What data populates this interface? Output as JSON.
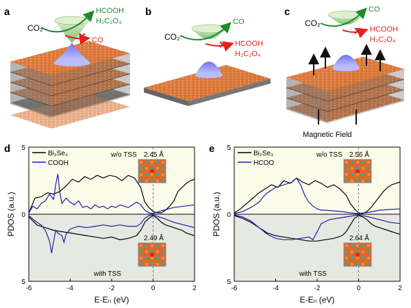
{
  "panels": {
    "a": {
      "letter": "a",
      "reactant": "CO₂",
      "favored": [
        "HCOOH",
        "H₂C₂O₄"
      ],
      "blocked": [
        "CO"
      ]
    },
    "b": {
      "letter": "b",
      "reactant": "CO₂",
      "favored": [
        "CO"
      ],
      "blocked": [
        "HCOOH",
        "H₂C₂O₄"
      ]
    },
    "c": {
      "letter": "c",
      "reactant": "CO₂",
      "favored": [
        "CO"
      ],
      "blocked": [
        "HCOOH",
        "H₂C₂O₄"
      ],
      "field_label": "Magnetic Field"
    }
  },
  "colors": {
    "favored": "#1e8a2e",
    "blocked": "#e3211c",
    "bi2se3": "#000000",
    "adsorbate": "#1a1ab4",
    "slab_top": "#e07a3a",
    "cone_upper": "#9bcf8a",
    "cone_lower": "#8a8ff0",
    "plot_top_bg": "#fbfbea",
    "plot_bottom_bg": "#e6e9e1"
  },
  "chart_data": [
    {
      "type": "line",
      "panel": "d",
      "xlabel": "E-Eₙ (eV)",
      "ylabel": "PDOS (a.u.)",
      "xlim": [
        -6,
        2
      ],
      "ylim": [
        -5,
        5
      ],
      "xticks": [
        "-6",
        "-4",
        "-2",
        "0",
        "2"
      ],
      "yticks": [
        "5",
        "0",
        "5"
      ],
      "top_label": "w/o TSS",
      "bottom_label": "with TSS",
      "legend": [
        "Bi₂Se₃",
        "COOH"
      ],
      "annotations": [
        "2.45 Å",
        "2.49 Å"
      ],
      "series": [
        {
          "name": "Bi₂Se₃",
          "part": "upper",
          "x": [
            -6,
            -5.7,
            -5.4,
            -5.1,
            -4.8,
            -4.5,
            -4.2,
            -3.9,
            -3.6,
            -3.3,
            -3.0,
            -2.7,
            -2.4,
            -2.1,
            -1.8,
            -1.5,
            -1.2,
            -0.9,
            -0.6,
            -0.4,
            -0.2,
            0,
            0.2,
            0.4,
            0.6,
            0.8,
            1.0,
            1.2,
            1.4,
            1.6,
            1.8,
            2.0
          ],
          "y": [
            0.1,
            1.2,
            1.3,
            1.6,
            1.5,
            1.7,
            2.1,
            2.6,
            2.4,
            2.8,
            2.6,
            2.9,
            2.7,
            2.9,
            2.8,
            2.5,
            2.9,
            2.7,
            2.0,
            0.9,
            0.5,
            0.2,
            0.1,
            0.1,
            0.3,
            0.6,
            1.0,
            1.7,
            2.0,
            2.3,
            2.5,
            2.6
          ]
        },
        {
          "name": "COOH",
          "part": "upper",
          "x": [
            -6,
            -5.8,
            -5.6,
            -5.4,
            -5.2,
            -5.0,
            -4.8,
            -4.7,
            -4.6,
            -4.5,
            -4.4,
            -4.2,
            -4.0,
            -3.8,
            -3.6,
            -3.4,
            -3.2,
            -3.0,
            -2.8,
            -2.6,
            -2.4,
            -2.2,
            -2.0,
            -1.8,
            -1.6,
            -1.4,
            -1.2,
            -1.0,
            -0.8,
            -0.6,
            -0.4,
            -0.2,
            0,
            0.5,
            1.0,
            1.5,
            2.0
          ],
          "y": [
            0.1,
            0.6,
            0.4,
            0.8,
            1.0,
            1.5,
            1.1,
            2.2,
            3.0,
            1.6,
            0.8,
            1.2,
            0.9,
            0.7,
            1.0,
            0.5,
            0.6,
            0.4,
            0.7,
            0.5,
            0.6,
            0.4,
            0.6,
            0.5,
            0.7,
            0.6,
            0.5,
            0.7,
            0.9,
            0.7,
            0.3,
            0.1,
            0.05,
            0.3,
            0.5,
            0.6,
            0.7
          ]
        },
        {
          "name": "Bi₂Se₃",
          "part": "lower",
          "x": [
            -6,
            -5.6,
            -5.2,
            -4.8,
            -4.4,
            -4.0,
            -3.6,
            -3.2,
            -2.8,
            -2.4,
            -2.0,
            -1.6,
            -1.2,
            -0.8,
            -0.6,
            -0.4,
            -0.2,
            0,
            0.2,
            0.4,
            0.6,
            0.8,
            1.0,
            1.2,
            1.4,
            1.6,
            1.8,
            2.0
          ],
          "y": [
            -0.2,
            -0.8,
            -1.0,
            -1.2,
            -1.3,
            -1.4,
            -1.5,
            -1.6,
            -1.7,
            -1.8,
            -1.7,
            -1.9,
            -1.8,
            -1.6,
            -1.2,
            -0.6,
            -0.3,
            -0.1,
            -0.3,
            -0.6,
            -0.8,
            -0.9,
            -1.0,
            -1.1,
            -1.2,
            -1.4,
            -1.5,
            -1.6
          ]
        },
        {
          "name": "COOH",
          "part": "lower",
          "x": [
            -6,
            -5.7,
            -5.4,
            -5.2,
            -5.0,
            -4.9,
            -4.8,
            -4.7,
            -4.6,
            -4.4,
            -4.3,
            -4.2,
            -4.0,
            -3.6,
            -3.2,
            -2.8,
            -2.4,
            -2.0,
            -1.6,
            -1.2,
            -0.8,
            -0.6,
            -0.4,
            -0.2,
            0,
            0.5,
            1.0,
            1.5,
            2.0
          ],
          "y": [
            -0.1,
            -0.5,
            -0.8,
            -1.2,
            -2.0,
            -2.9,
            -2.0,
            -1.2,
            -1.4,
            -1.6,
            -2.1,
            -1.5,
            -1.1,
            -0.9,
            -1.0,
            -0.9,
            -0.8,
            -0.9,
            -0.8,
            -0.9,
            -0.9,
            -0.7,
            -0.3,
            -0.1,
            -0.05,
            -0.3,
            -0.6,
            -0.8,
            -1.0
          ]
        }
      ]
    },
    {
      "type": "line",
      "panel": "e",
      "xlabel": "E-Eₙ (eV)",
      "ylabel": "PDOS (a.u.)",
      "xlim": [
        -6,
        2
      ],
      "ylim": [
        -5,
        5
      ],
      "xticks": [
        "-6",
        "-4",
        "-2",
        "0",
        "2"
      ],
      "yticks": [
        "5",
        "0",
        "5"
      ],
      "top_label": "w/o TSS",
      "bottom_label": "with TSS",
      "legend": [
        "Bi₂Se₃",
        "HCOO"
      ],
      "annotations": [
        "2.56 Å",
        "2.64 Å"
      ],
      "series": [
        {
          "name": "Bi₂Se₃",
          "part": "upper",
          "x": [
            -6,
            -5.7,
            -5.4,
            -5.1,
            -4.8,
            -4.5,
            -4.2,
            -3.9,
            -3.6,
            -3.3,
            -3.0,
            -2.7,
            -2.4,
            -2.1,
            -1.8,
            -1.5,
            -1.2,
            -0.9,
            -0.6,
            -0.4,
            -0.2,
            0,
            0.2,
            0.4,
            0.6,
            0.8,
            1.0,
            1.2,
            1.4,
            1.6,
            1.8,
            2.0
          ],
          "y": [
            0.1,
            0.4,
            0.8,
            1.2,
            1.6,
            1.9,
            2.2,
            2.0,
            2.5,
            2.3,
            2.7,
            2.4,
            2.2,
            2.5,
            2.3,
            2.0,
            2.2,
            1.9,
            1.4,
            0.8,
            0.4,
            0.1,
            0.05,
            0.2,
            0.5,
            0.9,
            1.3,
            1.7,
            2.0,
            2.2,
            2.3,
            2.4
          ]
        },
        {
          "name": "HCOO",
          "part": "upper",
          "x": [
            -6,
            -5.6,
            -5.2,
            -4.8,
            -4.6,
            -4.4,
            -4.2,
            -4.0,
            -3.8,
            -3.6,
            -3.4,
            -3.2,
            -3.0,
            -2.8,
            -2.6,
            -2.4,
            -2.2,
            -2.0,
            -1.8,
            -1.6,
            -1.2,
            -0.8,
            -0.4,
            0,
            0.5,
            1.0,
            1.5,
            2.0
          ],
          "y": [
            0.05,
            0.2,
            0.5,
            0.9,
            1.3,
            1.6,
            1.8,
            2.0,
            2.1,
            2.2,
            2.3,
            2.4,
            2.7,
            2.2,
            1.4,
            0.9,
            0.6,
            0.4,
            0.3,
            0.3,
            0.25,
            0.2,
            0.1,
            0.05,
            0.15,
            0.3,
            0.35,
            0.4
          ]
        },
        {
          "name": "Bi₂Se₃",
          "part": "lower",
          "x": [
            -6,
            -5.6,
            -5.2,
            -4.8,
            -4.4,
            -4.0,
            -3.6,
            -3.2,
            -2.8,
            -2.4,
            -2.0,
            -1.6,
            -1.2,
            -0.8,
            -0.6,
            -0.4,
            -0.2,
            0,
            0.2,
            0.4,
            0.6,
            0.8,
            1.0,
            1.2,
            1.4,
            1.6,
            1.8,
            2.0
          ],
          "y": [
            -0.1,
            -0.3,
            -0.6,
            -1.0,
            -1.4,
            -1.6,
            -1.7,
            -1.8,
            -1.9,
            -2.0,
            -2.0,
            -1.9,
            -1.8,
            -1.6,
            -1.3,
            -0.8,
            -0.3,
            -0.1,
            -0.2,
            -0.4,
            -0.7,
            -0.9,
            -1.0,
            -1.1,
            -1.2,
            -1.3,
            -1.4,
            -1.5
          ]
        },
        {
          "name": "HCOO",
          "part": "lower",
          "x": [
            -6,
            -5.6,
            -5.2,
            -4.8,
            -4.4,
            -4.0,
            -3.6,
            -3.2,
            -2.8,
            -2.4,
            -2.2,
            -2.0,
            -1.8,
            -1.4,
            -1.0,
            -0.6,
            -0.2,
            0,
            0.5,
            1.0,
            1.5,
            2.0
          ],
          "y": [
            -0.05,
            -0.2,
            -0.5,
            -1.0,
            -1.5,
            -1.8,
            -1.9,
            -1.9,
            -1.8,
            -1.7,
            -1.9,
            -1.3,
            -0.7,
            -0.4,
            -0.3,
            -0.2,
            -0.1,
            -0.05,
            -0.2,
            -0.4,
            -0.6,
            -0.7
          ]
        }
      ]
    }
  ]
}
